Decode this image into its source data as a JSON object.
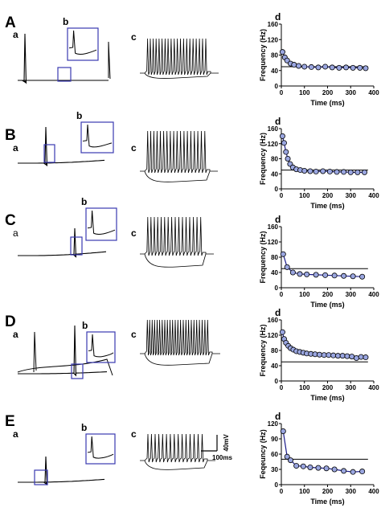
{
  "figure": {
    "rows": [
      {
        "label": "A",
        "a": "a",
        "b": "b",
        "c": "c",
        "d": "d"
      },
      {
        "label": "B",
        "a": "a",
        "b": "b",
        "c": "c",
        "d": "d"
      },
      {
        "label": "C",
        "a": "a",
        "b": "b",
        "c": "c",
        "d": "d"
      },
      {
        "label": "D",
        "a": "a",
        "b": "b",
        "c": "c",
        "d": "d"
      },
      {
        "label": "E",
        "a": "a",
        "b": "b",
        "c": "c",
        "d": "d"
      }
    ],
    "scale_bar": {
      "voltage": "40mV",
      "time": "100ms"
    },
    "colors": {
      "inset_box": "#3a3ab0",
      "marker_fill": "#9aa6e0",
      "fit_line": "#1b1b8a"
    }
  },
  "chart_data": [
    {
      "type": "scatter",
      "panel": "A-d",
      "xlabel": "Time (ms)",
      "ylabel": "Frequency (Hz)",
      "xlim": [
        0,
        400
      ],
      "ylim": [
        0,
        160
      ],
      "xticks": [
        "0",
        "100",
        "200",
        "300",
        "400"
      ],
      "yticks": [
        "0",
        "40",
        "80",
        "120",
        "160"
      ],
      "reference_y": 50,
      "x": [
        5,
        15,
        25,
        40,
        55,
        75,
        100,
        130,
        160,
        190,
        220,
        250,
        280,
        310,
        340,
        365
      ],
      "y": [
        88,
        74,
        66,
        58,
        55,
        52,
        50,
        49,
        48,
        50,
        48,
        47,
        48,
        47,
        47,
        46
      ]
    },
    {
      "type": "scatter",
      "panel": "B-d",
      "xlabel": "Time (ms)",
      "ylabel": "Frequency (Hz)",
      "xlim": [
        0,
        400
      ],
      "ylim": [
        0,
        160
      ],
      "xticks": [
        "0",
        "100",
        "200",
        "300",
        "400"
      ],
      "yticks": [
        "0",
        "40",
        "80",
        "120",
        "160"
      ],
      "reference_y": 50,
      "x": [
        5,
        12,
        20,
        28,
        38,
        50,
        65,
        82,
        100,
        125,
        150,
        180,
        210,
        240,
        270,
        300,
        330,
        360
      ],
      "y": [
        140,
        122,
        98,
        80,
        66,
        57,
        52,
        50,
        48,
        47,
        46,
        47,
        46,
        45,
        45,
        44,
        44,
        44
      ]
    },
    {
      "type": "scatter",
      "panel": "C-d",
      "xlabel": "Time (ms)",
      "ylabel": "Frequency (Hz)",
      "xlim": [
        0,
        400
      ],
      "ylim": [
        0,
        160
      ],
      "xticks": [
        "0",
        "100",
        "200",
        "300",
        "400"
      ],
      "yticks": [
        "0",
        "40",
        "80",
        "120",
        "160"
      ],
      "reference_y": 50,
      "x": [
        8,
        25,
        50,
        80,
        110,
        150,
        190,
        230,
        270,
        310,
        350
      ],
      "y": [
        88,
        54,
        40,
        36,
        35,
        34,
        33,
        32,
        31,
        30,
        29
      ]
    },
    {
      "type": "scatter",
      "panel": "D-d",
      "xlabel": "Time (ms)",
      "ylabel": "Frequency (Hz)",
      "xlim": [
        0,
        400
      ],
      "ylim": [
        0,
        160
      ],
      "xticks": [
        "0",
        "100",
        "200",
        "300",
        "400"
      ],
      "yticks": [
        "0",
        "40",
        "80",
        "120",
        "160"
      ],
      "reference_y": 50,
      "x": [
        5,
        12,
        20,
        30,
        40,
        52,
        65,
        80,
        95,
        110,
        128,
        146,
        165,
        185,
        205,
        225,
        245,
        265,
        285,
        305,
        325,
        345,
        365
      ],
      "y": [
        128,
        110,
        100,
        92,
        86,
        82,
        78,
        76,
        74,
        72,
        71,
        70,
        69,
        68,
        68,
        67,
        66,
        66,
        65,
        64,
        60,
        63,
        62
      ]
    },
    {
      "type": "scatter",
      "panel": "E-d",
      "xlabel": "Time (ms)",
      "ylabel": "Feqeuncy (Hz)",
      "xlim": [
        0,
        400
      ],
      "ylim": [
        0,
        120
      ],
      "xticks": [
        "0",
        "100",
        "200",
        "300",
        "400"
      ],
      "yticks": [
        "0",
        "30",
        "60",
        "90",
        "120"
      ],
      "reference_y": 50,
      "x": [
        8,
        25,
        40,
        65,
        95,
        125,
        160,
        195,
        230,
        270,
        310,
        350
      ],
      "y": [
        105,
        55,
        48,
        37,
        36,
        34,
        33,
        32,
        30,
        27,
        25,
        26
      ]
    }
  ]
}
